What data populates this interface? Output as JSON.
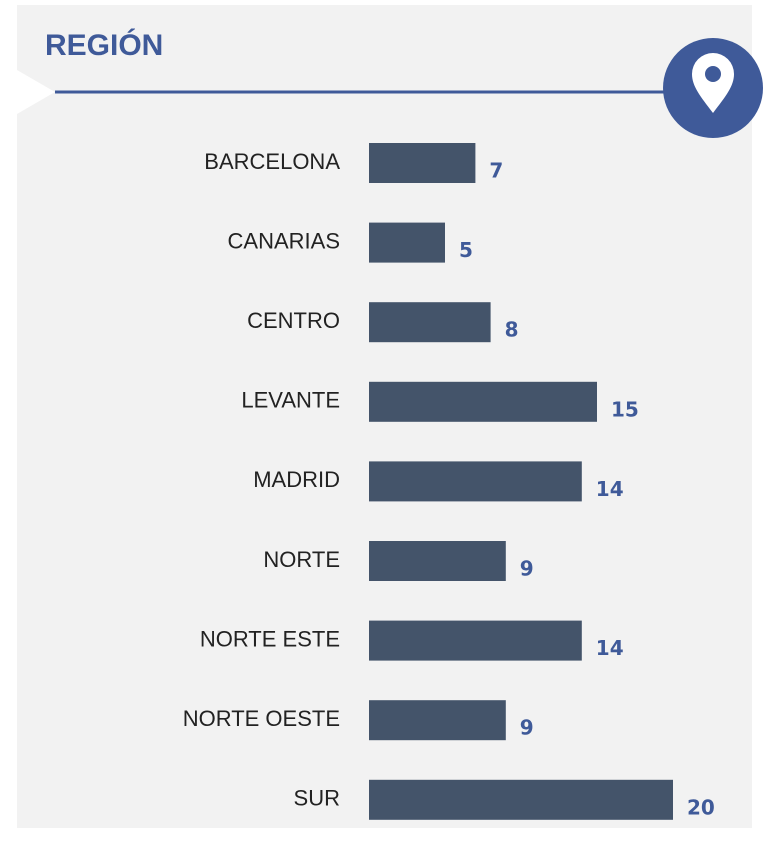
{
  "chart_data": {
    "type": "bar",
    "orientation": "horizontal",
    "title": "REGIÓN",
    "categories": [
      "BARCELONA",
      "CANARIAS",
      "CENTRO",
      "LEVANTE",
      "MADRID",
      "NORTE",
      "NORTE ESTE",
      "NORTE OESTE",
      "SUR"
    ],
    "values": [
      7,
      5,
      8,
      15,
      14,
      9,
      14,
      9,
      20
    ],
    "color": "#44546a",
    "xlim": [
      0,
      20
    ]
  }
}
